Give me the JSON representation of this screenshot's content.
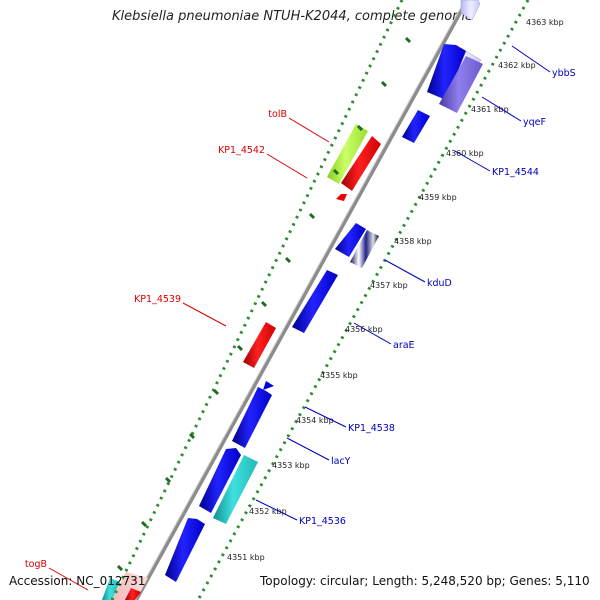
{
  "title": "Klebsiella pneumoniae NTUH-K2044, complete genome",
  "footer": {
    "accession": "Accession: NC_012731",
    "topology": "Topology: circular; Length: 5,248,520 bp; Genes: 5,110"
  },
  "colors": {
    "backbone": "#8c8c8c",
    "dots": "#2e8b2e",
    "forward_label": "#0000bb",
    "reverse_label": "#dd0000"
  },
  "ticks": [
    "4351 kbp",
    "4352 kbp",
    "4353 kbp",
    "4354 kbp",
    "4355 kbp",
    "4356 kbp",
    "4357 kbp",
    "4358 kbp",
    "4359 kbp",
    "4360 kbp",
    "4361 kbp",
    "4362 kbp",
    "4363 kbp"
  ],
  "gene_labels": [
    {
      "text": "ybbS",
      "strand": "forward"
    },
    {
      "text": "yqeF",
      "strand": "forward"
    },
    {
      "text": "KP1_4544",
      "strand": "forward"
    },
    {
      "text": "kduD",
      "strand": "forward"
    },
    {
      "text": "araE",
      "strand": "forward"
    },
    {
      "text": "KP1_4538",
      "strand": "forward"
    },
    {
      "text": "lacY",
      "strand": "forward"
    },
    {
      "text": "KP1_4536",
      "strand": "forward"
    },
    {
      "text": "tolB",
      "strand": "reverse"
    },
    {
      "text": "KP1_4542",
      "strand": "reverse"
    },
    {
      "text": "KP1_4539",
      "strand": "reverse"
    },
    {
      "text": "togB",
      "strand": "reverse"
    }
  ]
}
